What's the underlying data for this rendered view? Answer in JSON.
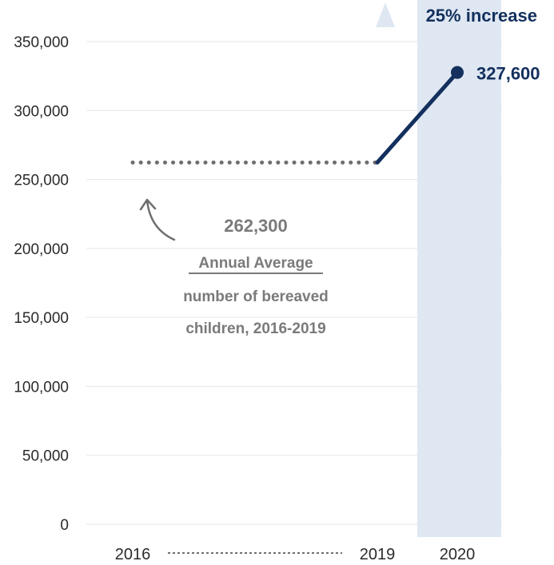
{
  "chart_data": {
    "type": "line",
    "x": [
      "2016",
      "2019",
      "2020"
    ],
    "y_ticks": [
      "350,000",
      "300,000",
      "250,000",
      "200,000",
      "150,000",
      "100,000",
      "50,000",
      "0"
    ],
    "ylim": [
      0,
      350000
    ],
    "grid": true,
    "series": [
      {
        "values": [
          262300,
          262300,
          327600
        ]
      }
    ],
    "value_label": "327,600",
    "highlight": {
      "category": "2020",
      "label": "25% increase"
    },
    "annotation": {
      "value": "262,300",
      "heading": "Annual Average",
      "line1": "number of bereaved",
      "line2": "children, 2016-2019"
    }
  },
  "colors": {
    "line": "#13305e",
    "dotted": "#6f6f6f",
    "highlight_band": "#dfe7f2",
    "annotation_text": "#7a7a7a",
    "axis_text": "#2b2b2b",
    "grid": "#e6e6e6"
  }
}
